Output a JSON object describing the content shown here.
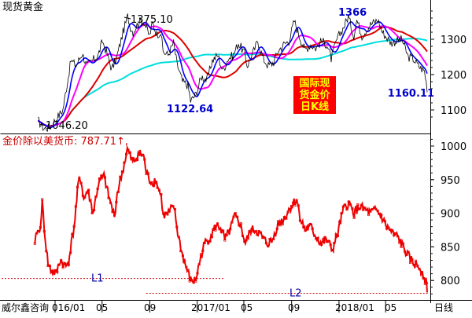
{
  "top_panel": {
    "title": "现货黄金",
    "annotations": [
      {
        "text": "1375.10",
        "color": "#000000",
        "x": "2016/07",
        "y": 1375.1
      },
      {
        "text": "1046.20",
        "color": "#000000",
        "x": "2015/12",
        "y": 1046.2
      },
      {
        "text": "1122.64",
        "color": "#0000cc",
        "x": "2016/12",
        "y": 1122.64
      },
      {
        "text": "1366",
        "color": "#0000cc",
        "x": "2017/09",
        "y": 1366
      },
      {
        "text": "1160.11",
        "color": "#0000cc",
        "x": "2018/08",
        "y": 1160.11
      }
    ],
    "legend_box": {
      "lines": [
        "国际现",
        "货金价",
        "日K线"
      ],
      "bg_color": "#ff0000",
      "text_color": "#ffff00"
    },
    "yaxis_ticks": [
      "1300",
      "1200",
      "1100"
    ]
  },
  "bottom_panel": {
    "header": "金价除以美货币: 787.71↑,",
    "header_color": "#cc0000",
    "yaxis_ticks": [
      "1000",
      "950",
      "900",
      "850",
      "800"
    ],
    "support_lines": [
      {
        "label": "L1",
        "y": 803,
        "from": "2015/12",
        "to": "2017/01"
      },
      {
        "label": "L2",
        "y": 781,
        "from": "2017/01",
        "to": "2018/08"
      }
    ]
  },
  "xaxis": {
    "labels": [
      "威尔鑫咨询",
      "016/01",
      "05",
      "09",
      "2017/01",
      "05",
      "09",
      "2018/01",
      "05"
    ],
    "period_label": "日线"
  },
  "colors": {
    "price_line": "#000000",
    "ma_blue": "#0000ff",
    "ma_magenta": "#ff00ff",
    "ma_red": "#dd0000",
    "ma_cyan": "#00dddd",
    "ratio_line": "#ee0000",
    "dashed": "#cc0000",
    "axis": "#000000"
  },
  "chart_data": [
    {
      "type": "line",
      "title": "现货黄金",
      "ylim": [
        1030,
        1400
      ],
      "series": [
        {
          "values": [
            [
              "2015/11/18",
              1070
            ],
            [
              "2015/12/03",
              1048
            ],
            [
              "2015/12/17",
              1050
            ],
            [
              "2016/01/04",
              1075
            ],
            [
              "2016/01/21",
              1100
            ],
            [
              "2016/02/11",
              1240
            ],
            [
              "2016/02/24",
              1225
            ],
            [
              "2016/03/11",
              1260
            ],
            [
              "2016/03/23",
              1225
            ],
            [
              "2016/04/07",
              1240
            ],
            [
              "2016/04/21",
              1255
            ],
            [
              "2016/05/02",
              1295
            ],
            [
              "2016/05/12",
              1265
            ],
            [
              "2016/05/26",
              1215
            ],
            [
              "2016/06/07",
              1245
            ],
            [
              "2016/06/24",
              1320
            ],
            [
              "2016/07/06",
              1365
            ],
            [
              "2016/07/13",
              1335
            ],
            [
              "2016/07/20",
              1320
            ],
            [
              "2016/08/04",
              1350
            ],
            [
              "2016/08/17",
              1350
            ],
            [
              "2016/08/31",
              1310
            ],
            [
              "2016/09/08",
              1345
            ],
            [
              "2016/09/19",
              1315
            ],
            [
              "2016/09/29",
              1320
            ],
            [
              "2016/10/05",
              1265
            ],
            [
              "2016/10/18",
              1255
            ],
            [
              "2016/11/01",
              1290
            ],
            [
              "2016/11/10",
              1230
            ],
            [
              "2016/11/24",
              1180
            ],
            [
              "2016/12/08",
              1170
            ],
            [
              "2016/12/15",
              1125
            ],
            [
              "2016/12/29",
              1145
            ],
            [
              "2017/01/12",
              1195
            ],
            [
              "2017/01/26",
              1185
            ],
            [
              "2017/02/09",
              1240
            ],
            [
              "2017/02/23",
              1255
            ],
            [
              "2017/03/08",
              1210
            ],
            [
              "2017/03/21",
              1245
            ],
            [
              "2017/04/04",
              1255
            ],
            [
              "2017/04/17",
              1290
            ],
            [
              "2017/05/03",
              1260
            ],
            [
              "2017/05/10",
              1225
            ],
            [
              "2017/05/24",
              1260
            ],
            [
              "2017/06/06",
              1295
            ],
            [
              "2017/06/20",
              1245
            ],
            [
              "2017/07/03",
              1225
            ],
            [
              "2017/07/17",
              1235
            ],
            [
              "2017/07/27",
              1265
            ],
            [
              "2017/08/11",
              1285
            ],
            [
              "2017/08/25",
              1295
            ],
            [
              "2017/09/08",
              1352
            ],
            [
              "2017/09/19",
              1315
            ],
            [
              "2017/10/05",
              1270
            ],
            [
              "2017/10/20",
              1285
            ],
            [
              "2017/11/02",
              1275
            ],
            [
              "2017/11/17",
              1295
            ],
            [
              "2017/12/01",
              1285
            ],
            [
              "2017/12/12",
              1245
            ],
            [
              "2017/12/27",
              1300
            ],
            [
              "2018/01/11",
              1330
            ],
            [
              "2018/01/25",
              1365
            ],
            [
              "2018/02/08",
              1310
            ],
            [
              "2018/02/16",
              1355
            ],
            [
              "2018/03/01",
              1310
            ],
            [
              "2018/03/21",
              1340
            ],
            [
              "2018/04/11",
              1355
            ],
            [
              "2018/04/23",
              1320
            ],
            [
              "2018/05/15",
              1290
            ],
            [
              "2018/06/12",
              1300
            ],
            [
              "2018/06/28",
              1250
            ],
            [
              "2018/07/11",
              1245
            ],
            [
              "2018/07/24",
              1225
            ],
            [
              "2018/08/09",
              1210
            ],
            [
              "2018/08/16",
              1162
            ]
          ]
        }
      ]
    },
    {
      "type": "line",
      "title": "金价除以美货币",
      "ylim": [
        775,
        1020
      ],
      "series": [
        {
          "values": [
            [
              "2015/11/10",
              850
            ],
            [
              "2015/11/15",
              875
            ],
            [
              "2015/11/22",
              870
            ],
            [
              "2015/11/29",
              915
            ],
            [
              "2015/12/07",
              860
            ],
            [
              "2015/12/14",
              825
            ],
            [
              "2015/12/21",
              815
            ],
            [
              "2016/01/04",
              810
            ],
            [
              "2016/01/14",
              830
            ],
            [
              "2016/01/29",
              820
            ],
            [
              "2016/02/05",
              830
            ],
            [
              "2016/02/19",
              880
            ],
            [
              "2016/03/01",
              945
            ],
            [
              "2016/03/08",
              950
            ],
            [
              "2016/03/15",
              920
            ],
            [
              "2016/03/25",
              935
            ],
            [
              "2016/04/08",
              900
            ],
            [
              "2016/04/22",
              945
            ],
            [
              "2016/05/06",
              955
            ],
            [
              "2016/05/18",
              925
            ],
            [
              "2016/06/02",
              895
            ],
            [
              "2016/06/09",
              930
            ],
            [
              "2016/06/22",
              960
            ],
            [
              "2016/07/05",
              995
            ],
            [
              "2016/07/12",
              985
            ],
            [
              "2016/07/19",
              975
            ],
            [
              "2016/07/26",
              980
            ],
            [
              "2016/08/02",
              990
            ],
            [
              "2016/08/16",
              985
            ],
            [
              "2016/08/23",
              960
            ],
            [
              "2016/09/06",
              945
            ],
            [
              "2016/09/16",
              950
            ],
            [
              "2016/09/30",
              925
            ],
            [
              "2016/10/06",
              895
            ],
            [
              "2016/10/19",
              900
            ],
            [
              "2016/11/02",
              910
            ],
            [
              "2016/11/12",
              870
            ],
            [
              "2016/11/25",
              835
            ],
            [
              "2016/12/06",
              815
            ],
            [
              "2016/12/15",
              800
            ],
            [
              "2016/12/28",
              800
            ],
            [
              "2017/01/06",
              825
            ],
            [
              "2017/01/20",
              855
            ],
            [
              "2017/02/03",
              865
            ],
            [
              "2017/02/17",
              880
            ],
            [
              "2017/03/02",
              880
            ],
            [
              "2017/03/13",
              860
            ],
            [
              "2017/03/27",
              875
            ],
            [
              "2017/04/07",
              895
            ],
            [
              "2017/04/21",
              885
            ],
            [
              "2017/05/05",
              855
            ],
            [
              "2017/05/19",
              875
            ],
            [
              "2017/06/02",
              875
            ],
            [
              "2017/06/16",
              865
            ],
            [
              "2017/06/30",
              855
            ],
            [
              "2017/07/14",
              860
            ],
            [
              "2017/07/28",
              885
            ],
            [
              "2017/08/11",
              890
            ],
            [
              "2017/08/25",
              905
            ],
            [
              "2017/09/05",
              915
            ],
            [
              "2017/09/14",
              920
            ],
            [
              "2017/09/25",
              890
            ],
            [
              "2017/10/06",
              875
            ],
            [
              "2017/10/20",
              880
            ],
            [
              "2017/11/03",
              865
            ],
            [
              "2017/11/17",
              855
            ],
            [
              "2017/12/01",
              860
            ],
            [
              "2017/12/15",
              845
            ],
            [
              "2017/12/29",
              870
            ],
            [
              "2018/01/12",
              905
            ],
            [
              "2018/01/26",
              915
            ],
            [
              "2018/02/09",
              900
            ],
            [
              "2018/02/23",
              910
            ],
            [
              "2018/03/09",
              905
            ],
            [
              "2018/03/23",
              900
            ],
            [
              "2018/04/06",
              905
            ],
            [
              "2018/04/20",
              895
            ],
            [
              "2018/05/04",
              880
            ],
            [
              "2018/05/18",
              870
            ],
            [
              "2018/06/01",
              865
            ],
            [
              "2018/06/15",
              850
            ],
            [
              "2018/06/29",
              835
            ],
            [
              "2018/07/13",
              825
            ],
            [
              "2018/07/27",
              820
            ],
            [
              "2018/08/06",
              810
            ],
            [
              "2018/08/13",
              797
            ],
            [
              "2018/08/16",
              788
            ]
          ]
        }
      ]
    }
  ]
}
